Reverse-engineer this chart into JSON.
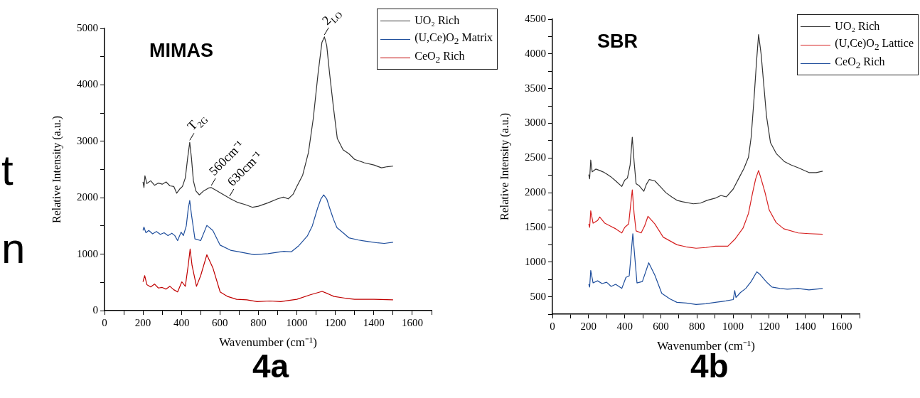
{
  "chart_data": [
    {
      "type": "line",
      "title": "MIMAS",
      "xlabel": "Wavenumber (cm⁻¹)",
      "ylabel": "Relative Intensity (a.u.)",
      "xlim": [
        0,
        1700
      ],
      "ylim": [
        0,
        5000
      ],
      "xticks": [
        0,
        {
          "value": 100,
          "label": null
        },
        200,
        {
          "value": 300,
          "label": null
        },
        400,
        {
          "value": 500,
          "label": null
        },
        600,
        {
          "value": 700,
          "label": null
        },
        800,
        {
          "value": 900,
          "label": null
        },
        1000,
        {
          "value": 1100,
          "label": null
        },
        1200,
        {
          "value": 1300,
          "label": null
        },
        1400,
        {
          "value": 1500,
          "label": null
        },
        1600,
        {
          "value": 1700,
          "label": null
        }
      ],
      "yticks": [
        0,
        {
          "value": 500,
          "label": null
        },
        1000,
        {
          "value": 1500,
          "label": null
        },
        2000,
        {
          "value": 2500,
          "label": null
        },
        3000,
        {
          "value": 3500,
          "label": null
        },
        4000,
        {
          "value": 4500,
          "label": null
        },
        5000
      ],
      "legend": "top right",
      "marker": "none",
      "line_style": "solid",
      "series": [
        {
          "name": "UO₂ Rich",
          "color": "#333333",
          "x": [
            200,
            205,
            210,
            220,
            240,
            260,
            280,
            300,
            320,
            340,
            360,
            375,
            390,
            405,
            420,
            432,
            443,
            452,
            462,
            475,
            493,
            515,
            540,
            555,
            575,
            600,
            630,
            655,
            690,
            730,
            770,
            800,
            850,
            900,
            930,
            955,
            980,
            1000,
            1030,
            1060,
            1085,
            1110,
            1130,
            1143,
            1155,
            1170,
            1190,
            1210,
            1240,
            1270,
            1300,
            1350,
            1400,
            1440,
            1470,
            1500
          ],
          "values": [
            2280,
            2180,
            2390,
            2250,
            2300,
            2220,
            2260,
            2240,
            2280,
            2210,
            2200,
            2080,
            2150,
            2200,
            2350,
            2700,
            2980,
            2700,
            2300,
            2120,
            2050,
            2120,
            2170,
            2180,
            2140,
            2090,
            2030,
            1980,
            1920,
            1880,
            1830,
            1850,
            1910,
            1980,
            2010,
            1980,
            2060,
            2200,
            2400,
            2800,
            3400,
            4200,
            4750,
            4850,
            4700,
            4200,
            3600,
            3050,
            2850,
            2780,
            2680,
            2620,
            2580,
            2530,
            2550,
            2560
          ]
        },
        {
          "name": "(U,Ce)O$_{2}$ Matrix",
          "color": "#1f4e9c",
          "x": [
            200,
            205,
            215,
            230,
            250,
            270,
            290,
            310,
            330,
            350,
            365,
            380,
            398,
            410,
            425,
            435,
            443,
            452,
            470,
            500,
            532,
            563,
            601,
            655,
            700,
            778,
            850,
            932,
            970,
            1010,
            1054,
            1080,
            1108,
            1125,
            1139,
            1155,
            1170,
            1190,
            1208,
            1240,
            1270,
            1320,
            1377,
            1420,
            1454,
            1500
          ],
          "values": [
            1420,
            1480,
            1380,
            1420,
            1360,
            1400,
            1350,
            1380,
            1330,
            1370,
            1330,
            1240,
            1390,
            1330,
            1500,
            1800,
            1950,
            1700,
            1270,
            1240,
            1510,
            1420,
            1160,
            1070,
            1040,
            990,
            1010,
            1050,
            1040,
            1150,
            1320,
            1500,
            1820,
            1980,
            2050,
            1980,
            1820,
            1620,
            1470,
            1380,
            1290,
            1250,
            1220,
            1200,
            1190,
            1210
          ]
        },
        {
          "name": "CeO$_{2}$ Rich",
          "color": "#c00000",
          "x": [
            200,
            209,
            220,
            240,
            260,
            280,
            300,
            320,
            340,
            360,
            380,
            402,
            420,
            435,
            445,
            455,
            478,
            500,
            532,
            563,
            601,
            640,
            686,
            740,
            793,
            860,
            916,
            960,
            1000,
            1070,
            1131,
            1160,
            1193,
            1250,
            1300,
            1400,
            1500
          ],
          "values": [
            510,
            620,
            460,
            420,
            470,
            400,
            410,
            380,
            430,
            370,
            330,
            510,
            430,
            800,
            1090,
            800,
            430,
            620,
            990,
            760,
            330,
            250,
            200,
            190,
            160,
            170,
            160,
            180,
            200,
            280,
            340,
            300,
            250,
            220,
            200,
            200,
            190
          ]
        }
      ],
      "annotations": [
        {
          "text": "T$_{2G}$",
          "x": 443,
          "y": 2980
        },
        {
          "text": "560cm⁻¹",
          "x": 555,
          "y": 2180
        },
        {
          "text": "630cm⁻¹",
          "x": 650,
          "y": 1990
        },
        {
          "text": "2$_{LO}$",
          "x": 1143,
          "y": 4850
        },
        "4a",
        "t",
        "n"
      ]
    },
    {
      "type": "line",
      "title": "SBR",
      "xlabel": "Wavenumber (cm⁻¹)",
      "ylabel": "Relative Intensity (a.u.)",
      "xlim": [
        0,
        1700
      ],
      "ylim": [
        250,
        4500
      ],
      "xticks": [
        0,
        {
          "value": 100,
          "label": null
        },
        200,
        {
          "value": 300,
          "label": null
        },
        400,
        {
          "value": 500,
          "label": null
        },
        600,
        {
          "value": 700,
          "label": null
        },
        800,
        {
          "value": 900,
          "label": null
        },
        1000,
        {
          "value": 1100,
          "label": null
        },
        1200,
        {
          "value": 1300,
          "label": null
        },
        1400,
        {
          "value": 1500,
          "label": null
        },
        1600,
        {
          "value": 1700,
          "label": null
        }
      ],
      "yticks": [
        {
          "value": 250,
          "label": null
        },
        500,
        {
          "value": 750,
          "label": null
        },
        1000,
        {
          "value": 1250,
          "label": null
        },
        1500,
        {
          "value": 1750,
          "label": null
        },
        2000,
        {
          "value": 2250,
          "label": null
        },
        2500,
        {
          "value": 2750,
          "label": null
        },
        3000,
        {
          "value": 3250,
          "label": null
        },
        3500,
        {
          "value": 3750,
          "label": null
        },
        4000,
        {
          "value": 4250,
          "label": null
        },
        4500
      ],
      "legend": "top right",
      "marker": "none",
      "line_style": "solid",
      "series": [
        {
          "name": "UO₂ Rich",
          "color": "#333333",
          "x": [
            201,
            206,
            212,
            220,
            240,
            262,
            280,
            300,
            323,
            350,
            384,
            400,
            415,
            430,
            442,
            452,
            463,
            480,
            506,
            520,
            536,
            567,
            600,
            628,
            660,
            689,
            720,
            780,
            820,
            856,
            900,
            933,
            963,
            1000,
            1032,
            1060,
            1085,
            1100,
            1116,
            1130,
            1141,
            1155,
            1169,
            1185,
            1207,
            1240,
            1283,
            1320,
            1360,
            1420,
            1460,
            1496
          ],
          "values": [
            2260,
            2200,
            2470,
            2300,
            2340,
            2320,
            2300,
            2270,
            2230,
            2170,
            2090,
            2180,
            2210,
            2400,
            2800,
            2450,
            2130,
            2100,
            2020,
            2120,
            2190,
            2170,
            2080,
            2000,
            1940,
            1890,
            1870,
            1840,
            1850,
            1890,
            1920,
            1960,
            1940,
            2050,
            2210,
            2350,
            2510,
            2800,
            3360,
            3900,
            4280,
            4000,
            3580,
            3100,
            2720,
            2560,
            2450,
            2400,
            2360,
            2290,
            2290,
            2310
          ]
        },
        {
          "name": "(U,Ce)O$_{2}$ Lattice",
          "color": "#d62020",
          "x": [
            201,
            206,
            212,
            225,
            250,
            262,
            290,
            320,
            350,
            384,
            400,
            422,
            432,
            442,
            452,
            463,
            491,
            510,
            529,
            567,
            613,
            689,
            740,
            795,
            850,
            902,
            971,
            1010,
            1055,
            1085,
            1108,
            1125,
            1141,
            1155,
            1177,
            1200,
            1238,
            1280,
            1360,
            1420,
            1496
          ],
          "values": [
            1550,
            1500,
            1740,
            1560,
            1600,
            1650,
            1560,
            1520,
            1480,
            1420,
            1500,
            1550,
            1800,
            2040,
            1700,
            1450,
            1420,
            1520,
            1660,
            1550,
            1360,
            1250,
            1220,
            1200,
            1210,
            1230,
            1230,
            1330,
            1490,
            1700,
            2000,
            2200,
            2320,
            2200,
            2000,
            1750,
            1570,
            1480,
            1420,
            1410,
            1400
          ]
        },
        {
          "name": "CeO$_{2}$ Rich",
          "color": "#1f4e9c",
          "x": [
            201,
            206,
            212,
            225,
            250,
            275,
            300,
            325,
            350,
            384,
            407,
            425,
            435,
            445,
            455,
            468,
            498,
            533,
            567,
            605,
            650,
            689,
            740,
            795,
            850,
            902,
            960,
            1001,
            1009,
            1016,
            1040,
            1070,
            1100,
            1131,
            1150,
            1169,
            1190,
            1215,
            1260,
            1300,
            1360,
            1420,
            1496
          ],
          "values": [
            680,
            640,
            880,
            700,
            730,
            690,
            710,
            650,
            680,
            620,
            780,
            800,
            1100,
            1410,
            1100,
            700,
            720,
            990,
            810,
            550,
            470,
            420,
            410,
            390,
            400,
            420,
            440,
            460,
            590,
            490,
            560,
            620,
            720,
            860,
            820,
            760,
            700,
            640,
            620,
            610,
            620,
            600,
            620
          ]
        }
      ],
      "annotations": [
        "4b"
      ]
    }
  ]
}
